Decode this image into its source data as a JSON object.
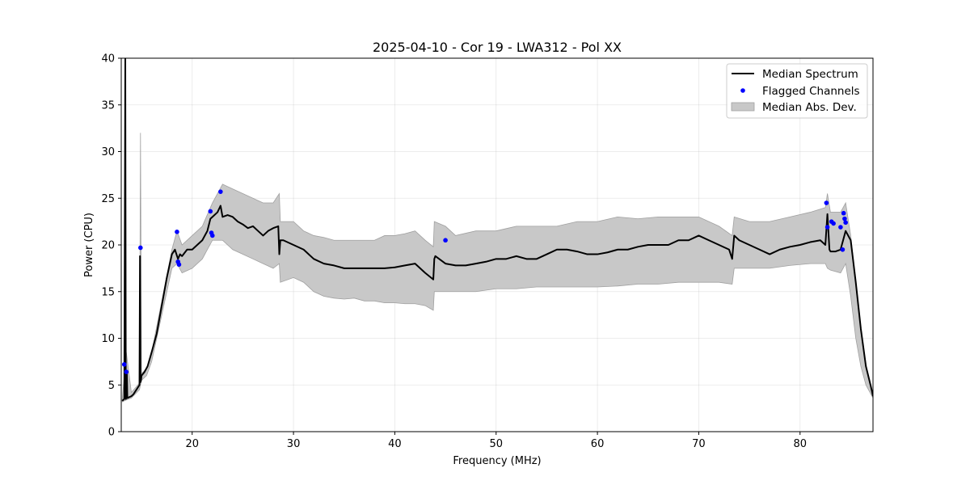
{
  "chart_data": {
    "type": "line",
    "title": "2025-04-10 - Cor 19 - LWA312 - Pol XX",
    "xlabel": "Frequency (MHz)",
    "ylabel": "Power (CPU)",
    "xlim": [
      13.0,
      87.2
    ],
    "ylim": [
      0,
      40
    ],
    "xticks": [
      20,
      30,
      40,
      50,
      60,
      70,
      80
    ],
    "yticks": [
      0,
      5,
      10,
      15,
      20,
      25,
      30,
      35,
      40
    ],
    "grid": true,
    "legend_position": "top-right",
    "legend": [
      "Median Spectrum",
      "Flagged Channels",
      "Median Abs. Dev."
    ],
    "colors": {
      "median": "#000000",
      "flagged": "#0000ff",
      "band_fill": "#c8c8c8",
      "band_edge": "#a0a0a0"
    },
    "series": [
      {
        "name": "Median Spectrum",
        "kind": "line",
        "x": [
          13.1,
          13.3,
          13.4,
          13.45,
          13.5,
          13.55,
          13.6,
          13.8,
          14.0,
          14.2,
          14.5,
          14.8,
          14.85,
          14.9,
          14.95,
          15.0,
          15.3,
          15.6,
          16.0,
          16.5,
          17.0,
          17.5,
          18.0,
          18.3,
          18.6,
          18.8,
          19.0,
          19.5,
          20.0,
          20.5,
          21.0,
          21.5,
          21.8,
          22.0,
          22.5,
          22.8,
          23.0,
          23.5,
          24.0,
          24.5,
          25.0,
          25.5,
          26.0,
          26.5,
          27.0,
          27.5,
          28.0,
          28.5,
          28.6,
          28.7,
          29.0,
          30.0,
          31.0,
          32.0,
          33.0,
          34.0,
          35.0,
          36.0,
          37.0,
          38.0,
          39.0,
          40.0,
          41.0,
          42.0,
          43.0,
          43.8,
          43.9,
          44.0,
          45.0,
          46.0,
          47.0,
          48.0,
          49.0,
          50.0,
          51.0,
          52.0,
          53.0,
          54.0,
          55.0,
          56.0,
          57.0,
          58.0,
          59.0,
          60.0,
          61.0,
          62.0,
          63.0,
          64.0,
          65.0,
          66.0,
          67.0,
          68.0,
          69.0,
          70.0,
          71.0,
          72.0,
          73.0,
          73.3,
          73.5,
          74.0,
          75.0,
          76.0,
          77.0,
          78.0,
          79.0,
          80.0,
          81.0,
          82.0,
          82.5,
          82.7,
          82.9,
          83.0,
          83.5,
          84.0,
          84.5,
          85.0,
          85.5,
          86.0,
          86.5,
          87.0,
          87.2
        ],
        "y": [
          3.3,
          3.5,
          40,
          3.5,
          3.6,
          6.5,
          3.6,
          3.7,
          3.8,
          4.0,
          4.5,
          5.0,
          18.8,
          5.3,
          5.5,
          6.0,
          6.4,
          7.0,
          8.5,
          10.5,
          13.5,
          16.5,
          19.0,
          19.5,
          18.5,
          19.0,
          18.8,
          19.5,
          19.5,
          20.0,
          20.5,
          21.5,
          22.8,
          23.0,
          23.5,
          24.2,
          23.0,
          23.2,
          23.0,
          22.5,
          22.2,
          21.8,
          22.0,
          21.5,
          21.0,
          21.5,
          21.8,
          22.0,
          19.0,
          20.5,
          20.5,
          20.0,
          19.5,
          18.5,
          18.0,
          17.8,
          17.5,
          17.5,
          17.5,
          17.5,
          17.5,
          17.6,
          17.8,
          18.0,
          17.0,
          16.3,
          18.5,
          18.8,
          18.0,
          17.8,
          17.8,
          18.0,
          18.2,
          18.5,
          18.5,
          18.8,
          18.5,
          18.5,
          19.0,
          19.5,
          19.5,
          19.3,
          19.0,
          19.0,
          19.2,
          19.5,
          19.5,
          19.8,
          20.0,
          20.0,
          20.0,
          20.5,
          20.5,
          21.0,
          20.5,
          20.0,
          19.5,
          18.5,
          21.0,
          20.5,
          20.0,
          19.5,
          19.0,
          19.5,
          19.8,
          20.0,
          20.3,
          20.5,
          20.0,
          23.3,
          19.5,
          19.3,
          19.3,
          19.5,
          21.5,
          20.5,
          16.0,
          11.0,
          7.0,
          4.8,
          3.8
        ]
      },
      {
        "name": "Flagged Channels",
        "kind": "scatter",
        "x": [
          13.3,
          13.5,
          14.9,
          18.5,
          18.6,
          18.7,
          21.8,
          21.9,
          22.0,
          22.8,
          45.0,
          82.6,
          82.7,
          83.1,
          83.3,
          84.0,
          84.2,
          84.3,
          84.4,
          84.5
        ],
        "y": [
          7.2,
          6.4,
          19.7,
          21.4,
          18.2,
          17.9,
          23.6,
          21.3,
          21.0,
          25.7,
          20.5,
          24.5,
          21.9,
          22.5,
          22.3,
          21.9,
          19.5,
          23.4,
          22.8,
          22.4
        ]
      },
      {
        "name": "Median Abs. Dev.",
        "kind": "band",
        "x": [
          13.1,
          13.5,
          14.0,
          14.8,
          14.9,
          15.0,
          15.5,
          16.0,
          17.0,
          18.0,
          18.5,
          19.0,
          20.0,
          21.0,
          22.0,
          23.0,
          24.0,
          25.0,
          26.0,
          27.0,
          28.0,
          28.6,
          28.7,
          30.0,
          31.0,
          32.0,
          33.0,
          34.0,
          35.0,
          36.0,
          37.0,
          38.0,
          39.0,
          40.0,
          41.0,
          42.0,
          43.0,
          43.8,
          43.9,
          45.0,
          46.0,
          48.0,
          50.0,
          52.0,
          54.0,
          56.0,
          58.0,
          60.0,
          62.0,
          64.0,
          66.0,
          68.0,
          70.0,
          72.0,
          73.3,
          73.5,
          75.0,
          77.0,
          79.0,
          81.0,
          82.5,
          82.7,
          83.0,
          84.0,
          84.5,
          85.0,
          85.5,
          86.0,
          86.5,
          87.0,
          87.2
        ],
        "upper": [
          3.5,
          8.5,
          4.2,
          5.2,
          32.0,
          6.2,
          6.8,
          8.5,
          14.0,
          19.5,
          21.5,
          20.0,
          21.0,
          22.0,
          24.5,
          26.5,
          26.0,
          25.5,
          25.0,
          24.5,
          24.5,
          25.5,
          22.5,
          22.5,
          21.5,
          21.0,
          20.8,
          20.5,
          20.5,
          20.5,
          20.5,
          20.5,
          21.0,
          21.0,
          21.2,
          21.5,
          20.5,
          19.8,
          22.5,
          22.0,
          21.0,
          21.5,
          21.5,
          22.0,
          22.0,
          22.0,
          22.5,
          22.5,
          23.0,
          22.8,
          23.0,
          23.0,
          23.0,
          22.0,
          21.0,
          23.0,
          22.5,
          22.5,
          23.0,
          23.5,
          24.0,
          25.5,
          23.5,
          23.5,
          24.5,
          21.0,
          16.0,
          11.0,
          7.0,
          4.5,
          3.8
        ],
        "lower": [
          3.2,
          3.4,
          3.6,
          4.5,
          5.0,
          5.5,
          6.0,
          7.5,
          12.5,
          17.5,
          18.0,
          17.0,
          17.5,
          18.5,
          20.5,
          20.5,
          19.5,
          19.0,
          18.5,
          18.0,
          17.5,
          18.0,
          16.0,
          16.5,
          16.0,
          15.0,
          14.5,
          14.3,
          14.2,
          14.3,
          14.0,
          14.0,
          13.8,
          13.8,
          13.7,
          13.7,
          13.5,
          13.0,
          15.0,
          15.0,
          15.0,
          15.0,
          15.3,
          15.3,
          15.5,
          15.5,
          15.5,
          15.5,
          15.6,
          15.8,
          15.8,
          16.0,
          16.0,
          16.0,
          15.8,
          17.5,
          17.5,
          17.5,
          17.8,
          18.0,
          18.0,
          17.5,
          17.3,
          17.0,
          18.0,
          14.5,
          10.0,
          7.0,
          5.0,
          4.0,
          3.6
        ]
      }
    ]
  }
}
